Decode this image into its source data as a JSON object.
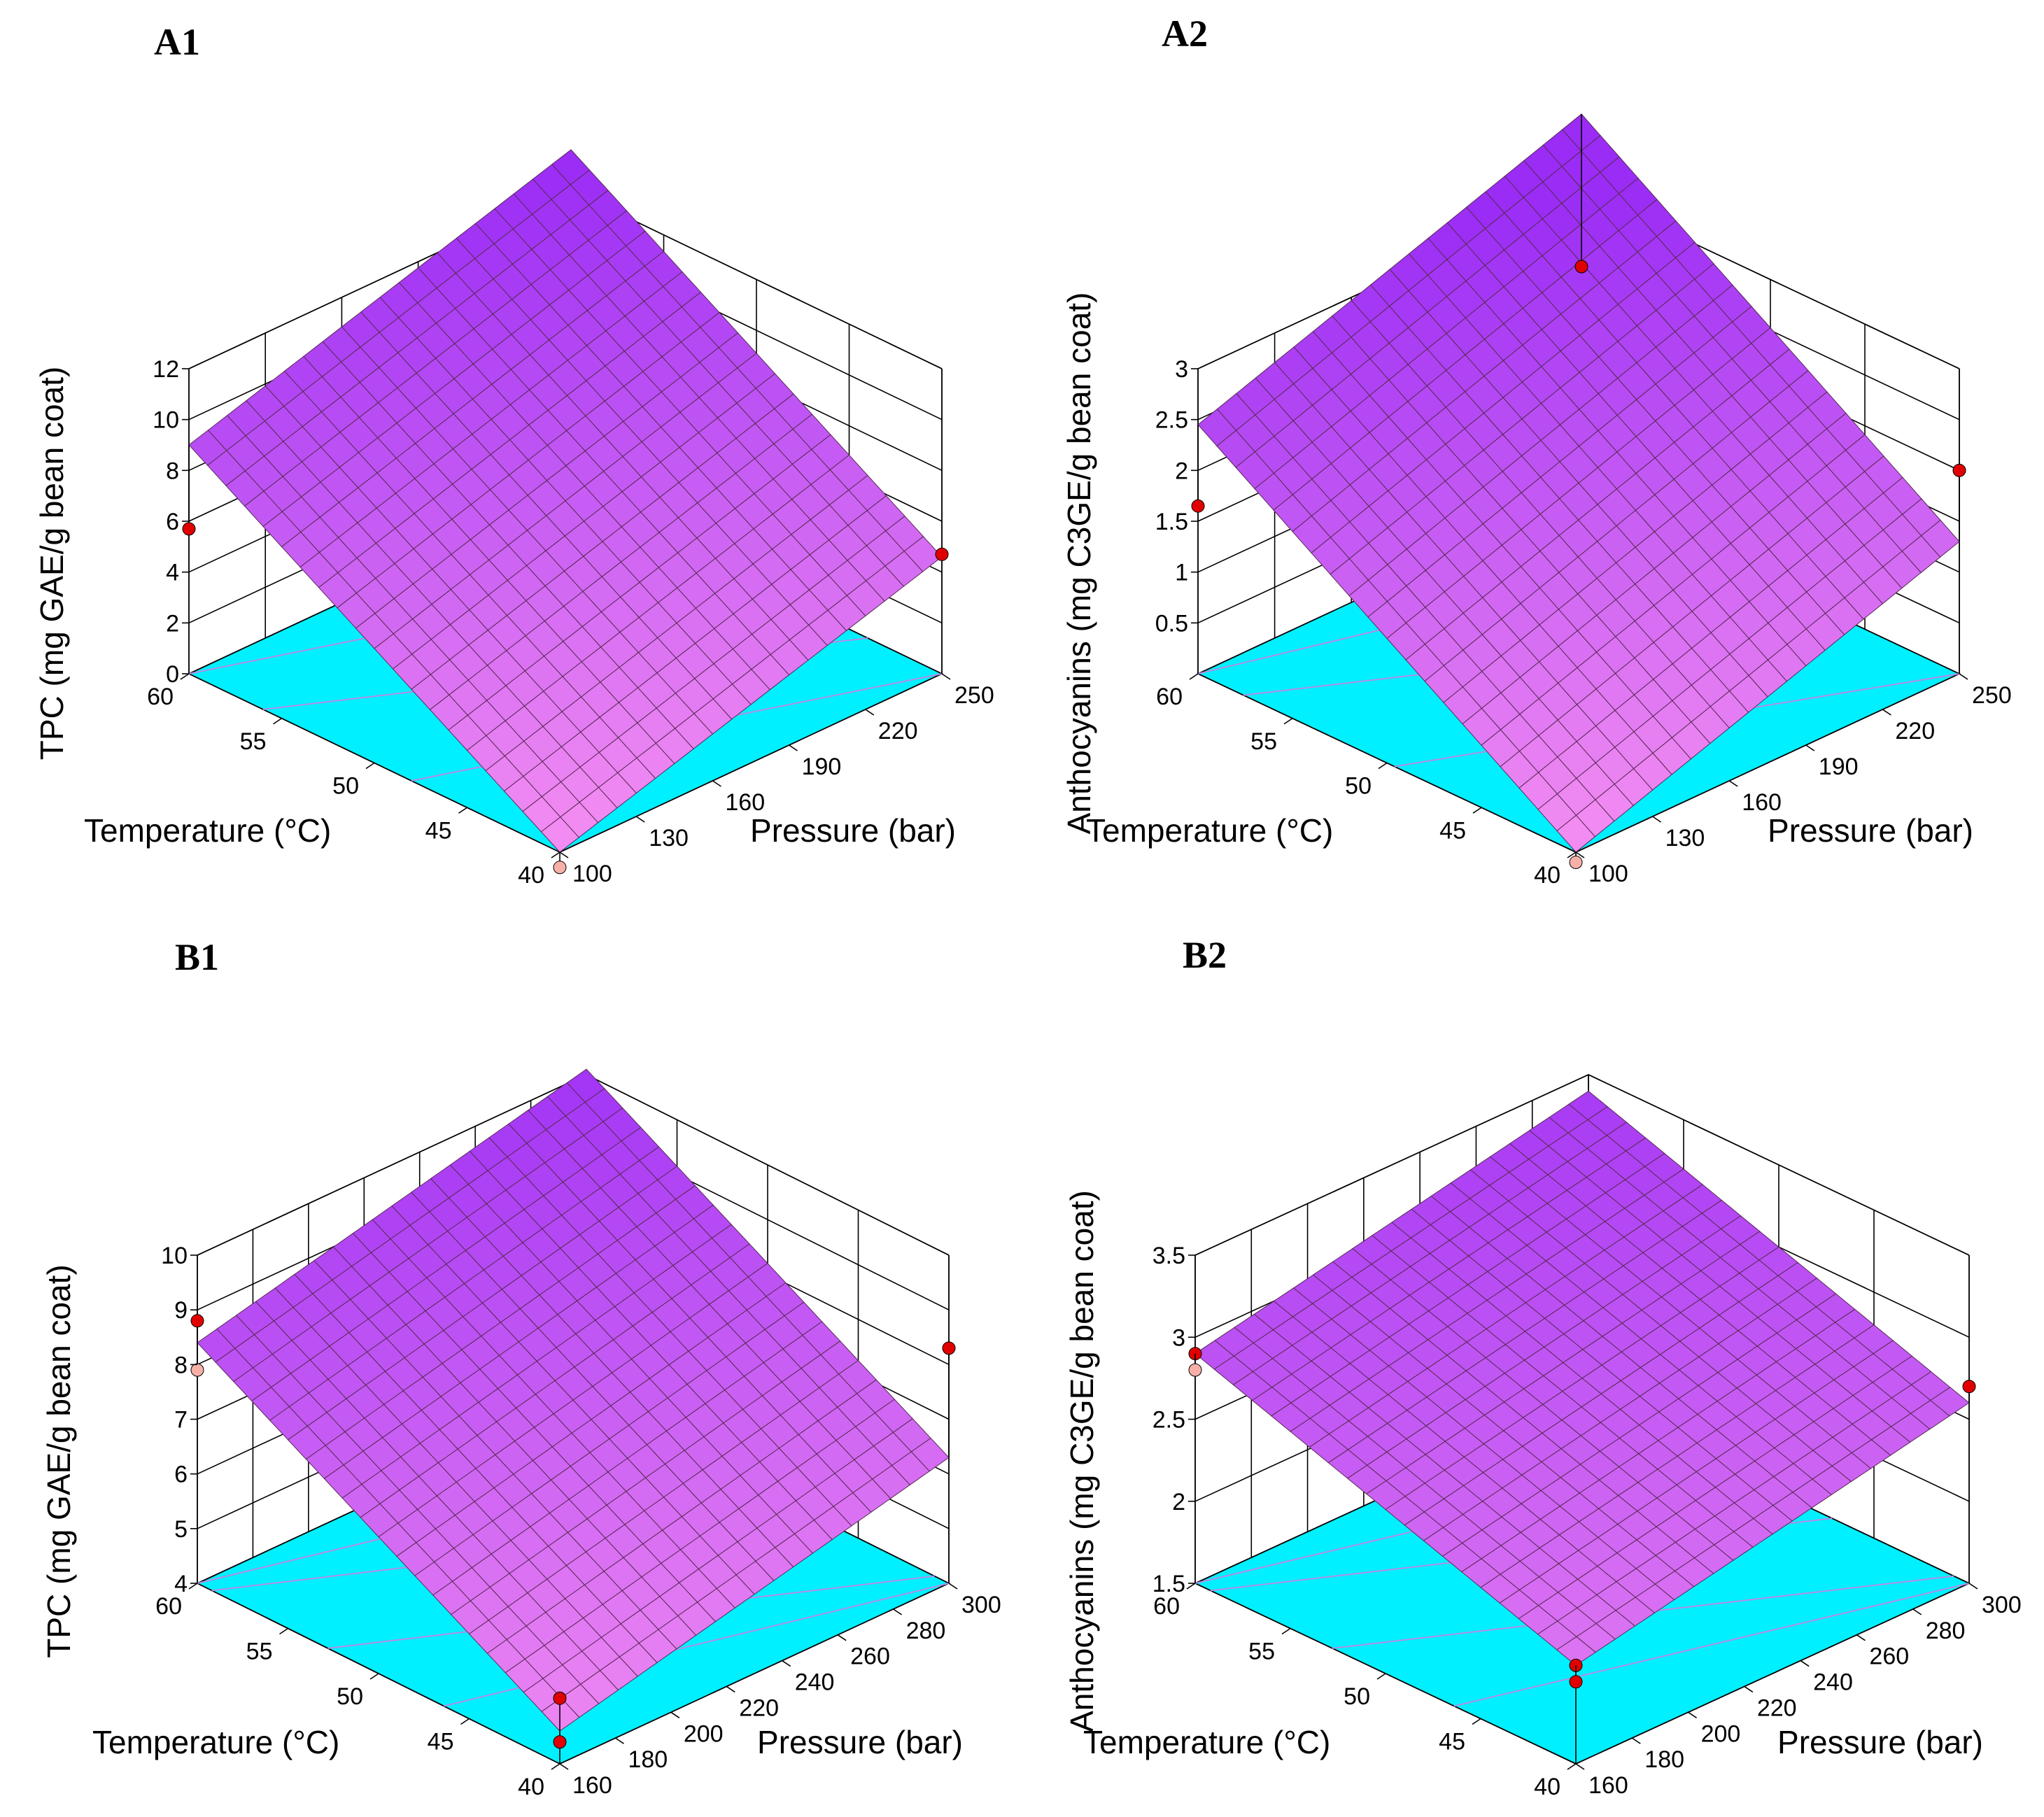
{
  "figure": {
    "background": "#ffffff",
    "surface_light": "#f58ff2",
    "surface_dark": "#9a2cf5",
    "mesh_color": "#5a2a55",
    "floor_color": "#00f0ff",
    "contour_color": "#b48ce6",
    "point_color": "#e00000",
    "point_pale_color": "#f7b0a8"
  },
  "chart_data": [
    {
      "id": "A1",
      "type": "surface3d",
      "panel_label": "A1",
      "zlabel": "TPC (mg GAE/g bean coat)",
      "xlabel": "Temperature (°C)",
      "ylabel": "Pressure (bar)",
      "x_ticks": [
        "40",
        "45",
        "50",
        "55",
        "60"
      ],
      "y_ticks": [
        "100",
        "130",
        "160",
        "190",
        "220",
        "250"
      ],
      "z_ticks": [
        "0",
        "2",
        "4",
        "6",
        "8",
        "10",
        "12"
      ],
      "xlim": [
        40,
        60
      ],
      "ylim": [
        100,
        250
      ],
      "zlim": [
        0,
        12
      ],
      "surface": {
        "at_x40_y100": 0.0,
        "at_x60_y100": 9.0,
        "at_x40_y250": 4.6,
        "at_x60_y250": 13.6
      },
      "points": [
        {
          "x": 60,
          "y": 100,
          "z": 5.7,
          "surface": 9.0
        },
        {
          "x": 40,
          "y": 250,
          "z": 4.7,
          "surface": 4.6
        },
        {
          "x": 40,
          "y": 100,
          "z": -0.6,
          "surface": 0.0,
          "below": true
        }
      ],
      "contours": [
        0.25,
        0.5,
        0.75
      ]
    },
    {
      "id": "A2",
      "type": "surface3d",
      "panel_label": "A2",
      "zlabel": "Anthocyanins (mg C3GE/g bean coat)",
      "xlabel": "Temperature (°C)",
      "ylabel": "Pressure (bar)",
      "x_ticks": [
        "40",
        "45",
        "50",
        "55",
        "60"
      ],
      "y_ticks": [
        "100",
        "130",
        "160",
        "190",
        "220",
        "250"
      ],
      "z_ticks": [
        "0.5",
        "1",
        "1.5",
        "2",
        "2.5",
        "3"
      ],
      "xlim": [
        40,
        60
      ],
      "ylim": [
        100,
        250
      ],
      "zlim": [
        0,
        3
      ],
      "surface": {
        "at_x40_y100": 0.0,
        "at_x60_y100": 2.45,
        "at_x40_y250": 1.3,
        "at_x60_y250": 3.75
      },
      "points": [
        {
          "x": 60,
          "y": 100,
          "z": 1.65,
          "surface": 2.45
        },
        {
          "x": 60,
          "y": 250,
          "z": 2.25,
          "surface": 3.75
        },
        {
          "x": 40,
          "y": 250,
          "z": 2.0,
          "surface": 1.3
        },
        {
          "x": 40,
          "y": 100,
          "z": -0.1,
          "surface": 0.0,
          "below": true
        }
      ],
      "contours": [
        0.3,
        0.55,
        0.8
      ]
    },
    {
      "id": "B1",
      "type": "surface3d",
      "panel_label": "B1",
      "zlabel": "TPC (mg GAE/g bean coat)",
      "xlabel": "Temperature (°C)",
      "ylabel": "Pressure (bar)",
      "x_ticks": [
        "40",
        "45",
        "50",
        "55",
        "60"
      ],
      "y_ticks": [
        "160",
        "180",
        "200",
        "220",
        "240",
        "260",
        "280",
        "300"
      ],
      "z_ticks": [
        "4",
        "5",
        "6",
        "7",
        "8",
        "9",
        "10"
      ],
      "xlim": [
        40,
        60
      ],
      "ylim": [
        160,
        300
      ],
      "zlim": [
        4,
        10
      ],
      "surface": {
        "at_x40_y160": 4.6,
        "at_x60_y160": 8.4,
        "at_x40_y300": 6.3,
        "at_x60_y300": 10.1
      },
      "points": [
        {
          "x": 60,
          "y": 160,
          "z": 8.8,
          "surface": 8.4
        },
        {
          "x": 60,
          "y": 160,
          "z": 7.9,
          "surface": 8.4,
          "pale": true
        },
        {
          "x": 40,
          "y": 300,
          "z": 8.3,
          "surface": 6.3
        },
        {
          "x": 40,
          "y": 160,
          "z": 5.2,
          "surface": 4.6
        },
        {
          "x": 40,
          "y": 160,
          "z": 4.4,
          "surface": 4.6
        }
      ],
      "contours": [
        0.2,
        0.4,
        0.6,
        0.8
      ]
    },
    {
      "id": "B2",
      "type": "surface3d",
      "panel_label": "B2",
      "zlabel": "Anthocyanins (mg C3GE/g bean coat)",
      "xlabel": "Temperature (°C)",
      "ylabel": "Pressure (bar)",
      "x_ticks": [
        "40",
        "45",
        "50",
        "55",
        "60"
      ],
      "y_ticks": [
        "160",
        "180",
        "200",
        "220",
        "240",
        "260",
        "280",
        "300"
      ],
      "z_ticks": [
        "1.5",
        "2",
        "2.5",
        "3",
        "3.5"
      ],
      "xlim": [
        40,
        60
      ],
      "ylim": [
        160,
        300
      ],
      "zlim": [
        1.5,
        3.5
      ],
      "surface": {
        "at_x40_y160": 2.1,
        "at_x60_y160": 2.9,
        "at_x40_y300": 2.6,
        "at_x60_y300": 3.4
      },
      "points": [
        {
          "x": 60,
          "y": 160,
          "z": 2.9,
          "surface": 2.9
        },
        {
          "x": 60,
          "y": 160,
          "z": 2.8,
          "surface": 2.9,
          "pale": true
        },
        {
          "x": 40,
          "y": 300,
          "z": 2.7,
          "surface": 2.6
        },
        {
          "x": 40,
          "y": 160,
          "z": 2.1,
          "surface": 2.1
        },
        {
          "x": 40,
          "y": 160,
          "z": 2.0,
          "surface": 2.1
        }
      ],
      "contours": [
        0.2,
        0.4,
        0.6,
        0.8
      ]
    }
  ]
}
